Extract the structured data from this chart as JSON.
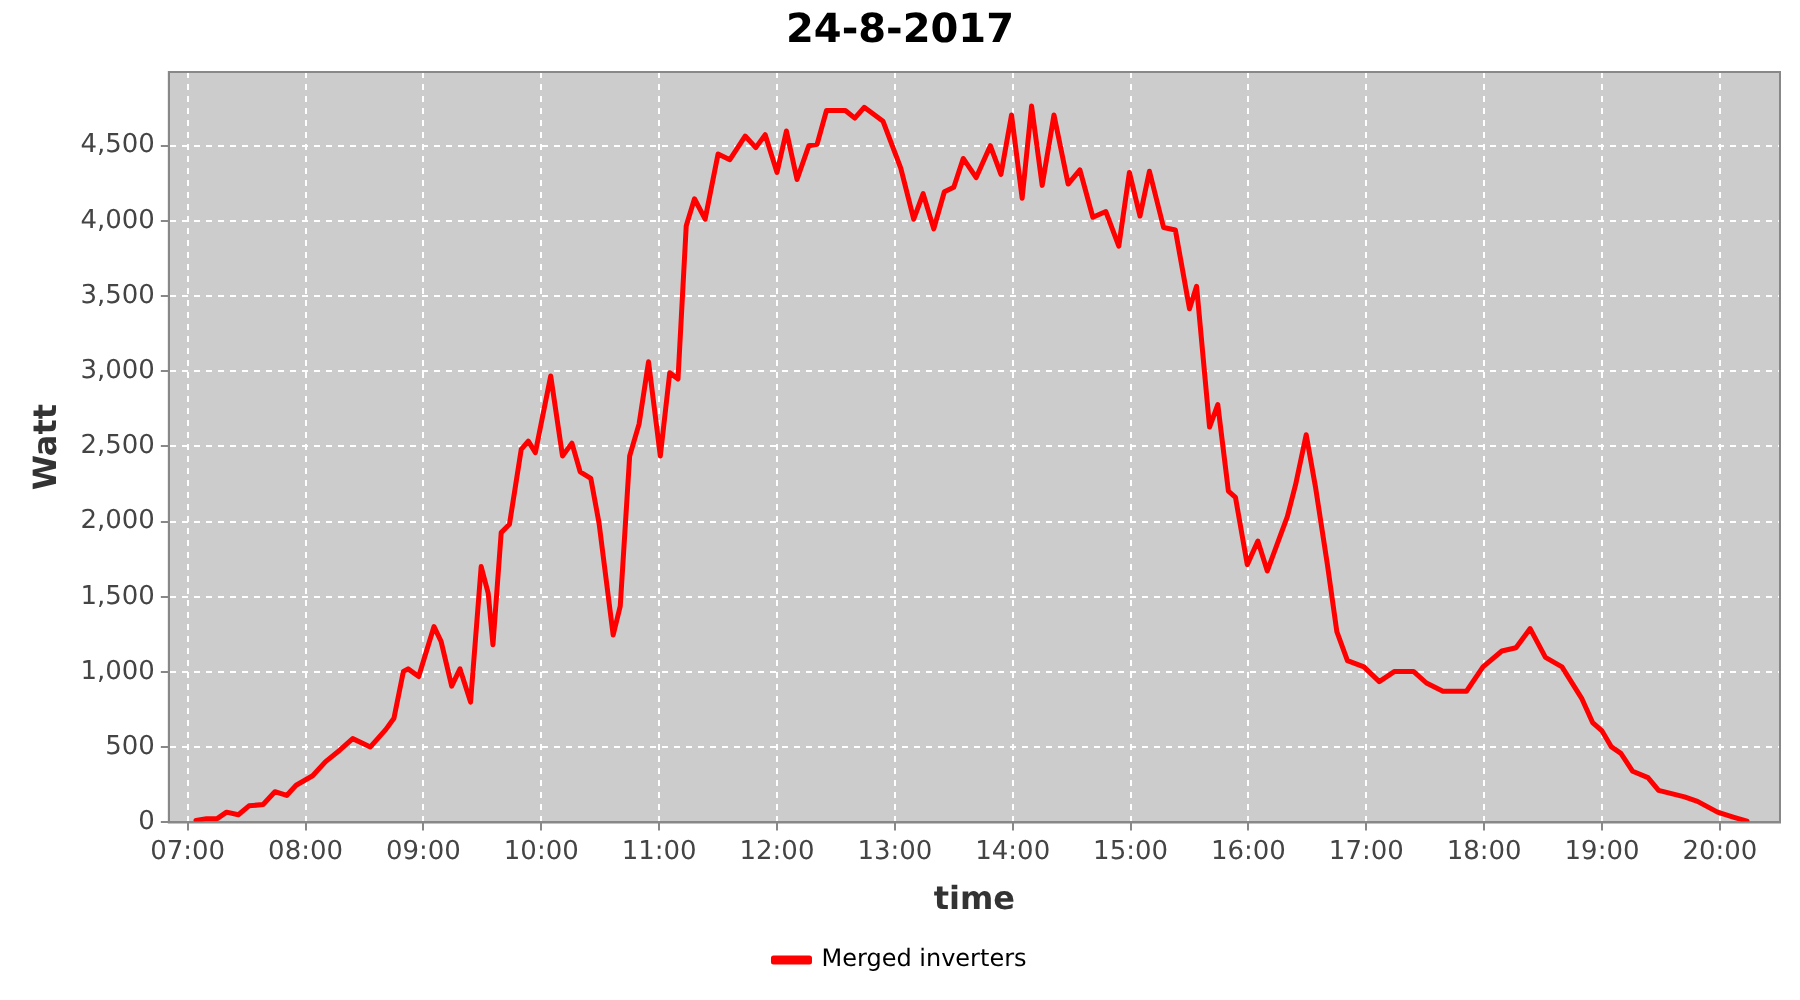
{
  "chart_data": {
    "type": "line",
    "title": "24-8-2017",
    "xlabel": "time",
    "ylabel": "Watt",
    "xlim": [
      6.84,
      20.51
    ],
    "xticks": [
      {
        "value": 7,
        "label": "07:00"
      },
      {
        "value": 8,
        "label": "08:00"
      },
      {
        "value": 9,
        "label": "09:00"
      },
      {
        "value": 10,
        "label": "10:00"
      },
      {
        "value": 11,
        "label": "11:00"
      },
      {
        "value": 12,
        "label": "12:00"
      },
      {
        "value": 13,
        "label": "13:00"
      },
      {
        "value": 14,
        "label": "14:00"
      },
      {
        "value": 15,
        "label": "15:00"
      },
      {
        "value": 16,
        "label": "16:00"
      },
      {
        "value": 17,
        "label": "17:00"
      },
      {
        "value": 18,
        "label": "18:00"
      },
      {
        "value": 19,
        "label": "19:00"
      },
      {
        "value": 20,
        "label": "20:00"
      }
    ],
    "ylim": [
      0,
      4990
    ],
    "yticks": [
      0,
      500,
      {
        "value": 1000,
        "label": "1,000"
      },
      {
        "value": 1500,
        "label": "1,500"
      },
      {
        "value": 2000,
        "label": "2,000"
      },
      {
        "value": 2500,
        "label": "2,500"
      },
      {
        "value": 3000,
        "label": "3,000"
      },
      {
        "value": 3500,
        "label": "3,500"
      },
      {
        "value": 4000,
        "label": "4,000"
      },
      {
        "value": 4500,
        "label": "4,500"
      }
    ],
    "grid": true,
    "legend": "bottom",
    "marker": "none",
    "line_style": "solid",
    "series": [
      {
        "name": "Merged inverters",
        "color": "#ff0000",
        "x": [
          7.07,
          7.16,
          7.25,
          7.33,
          7.43,
          7.52,
          7.64,
          7.74,
          7.84,
          7.92,
          8.06,
          8.17,
          8.29,
          8.4,
          8.55,
          8.68,
          8.75,
          8.83,
          8.87,
          8.96,
          9.09,
          9.15,
          9.24,
          9.31,
          9.4,
          9.49,
          9.55,
          9.59,
          9.66,
          9.73,
          9.83,
          9.89,
          9.95,
          10.08,
          10.18,
          10.26,
          10.33,
          10.42,
          10.49,
          10.61,
          10.67,
          10.75,
          10.83,
          10.91,
          11.01,
          11.09,
          11.16,
          11.23,
          11.3,
          11.39,
          11.5,
          11.6,
          11.73,
          11.82,
          11.9,
          12.0,
          12.08,
          12.17,
          12.27,
          12.34,
          12.42,
          12.58,
          12.66,
          12.74,
          12.9,
          13.05,
          13.16,
          13.24,
          13.33,
          13.42,
          13.5,
          13.58,
          13.69,
          13.81,
          13.9,
          13.99,
          14.08,
          14.16,
          14.25,
          14.35,
          14.47,
          14.57,
          14.68,
          14.79,
          14.9,
          14.99,
          15.08,
          15.16,
          15.28,
          15.38,
          15.5,
          15.56,
          15.67,
          15.74,
          15.83,
          15.89,
          15.99,
          16.08,
          16.16,
          16.25,
          16.33,
          16.4,
          16.49,
          16.57,
          16.67,
          16.75,
          16.84,
          16.98,
          17.11,
          17.24,
          17.4,
          17.51,
          17.65,
          17.85,
          17.99,
          18.15,
          18.27,
          18.39,
          18.52,
          18.66,
          18.83,
          18.92,
          19.0,
          19.08,
          19.16,
          19.26,
          19.39,
          19.48,
          19.7,
          19.81,
          19.98,
          20.12,
          20.23
        ],
        "values": [
          13,
          25,
          25,
          68,
          51,
          110,
          119,
          204,
          179,
          247,
          310,
          404,
          480,
          557,
          502,
          617,
          693,
          1004,
          1021,
          970,
          1302,
          1204,
          906,
          1021,
          800,
          1701,
          1523,
          1182,
          1927,
          1982,
          2480,
          2535,
          2459,
          2969,
          2437,
          2522,
          2331,
          2288,
          1991,
          1246,
          1438,
          2437,
          2650,
          3063,
          2437,
          2990,
          2948,
          3968,
          4147,
          4011,
          4445,
          4407,
          4564,
          4487,
          4573,
          4322,
          4598,
          4275,
          4500,
          4509,
          4734,
          4734,
          4683,
          4755,
          4662,
          4351,
          4011,
          4181,
          3947,
          4194,
          4224,
          4415,
          4288,
          4500,
          4309,
          4704,
          4151,
          4764,
          4236,
          4704,
          4245,
          4339,
          4024,
          4062,
          3832,
          4322,
          4032,
          4330,
          3956,
          3939,
          3416,
          3565,
          2629,
          2778,
          2203,
          2161,
          1714,
          1871,
          1672,
          1863,
          2033,
          2246,
          2578,
          2225,
          1714,
          1268,
          1076,
          1034,
          936,
          1004,
          1004,
          927,
          872,
          872,
          1034,
          1140,
          1161,
          1289,
          1097,
          1034,
          821,
          664,
          608,
          502,
          459,
          340,
          298,
          213,
          170,
          140,
          68,
          34,
          9
        ]
      }
    ]
  }
}
